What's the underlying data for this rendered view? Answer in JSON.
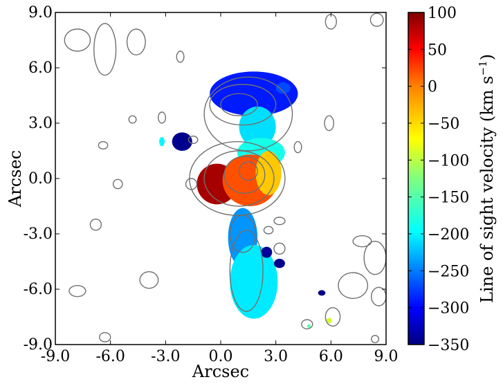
{
  "chart_data": {
    "type": "heatmap",
    "title": "",
    "xlabel": "Arcsec",
    "ylabel": "Arcsec",
    "xlim": [
      -9.0,
      9.0
    ],
    "ylim": [
      -9.0,
      9.0
    ],
    "x_ticks": [
      {
        "value": -9.0,
        "label": "-9.0"
      },
      {
        "value": -6.0,
        "label": "-6.0"
      },
      {
        "value": -3.0,
        "label": "-3.0"
      },
      {
        "value": 0.0,
        "label": "0.0"
      },
      {
        "value": 3.0,
        "label": "3.0"
      },
      {
        "value": 6.0,
        "label": "6.0"
      },
      {
        "value": 9.0,
        "label": "9.0"
      }
    ],
    "y_ticks": [
      {
        "value": 9.0,
        "label": "9.0"
      },
      {
        "value": 6.0,
        "label": "6.0"
      },
      {
        "value": 3.0,
        "label": "3.0"
      },
      {
        "value": 0.0,
        "label": "0.0"
      },
      {
        "value": -3.0,
        "label": "-3.0"
      },
      {
        "value": -6.0,
        "label": "-6.0"
      },
      {
        "value": -9.0,
        "label": "-9.0"
      }
    ],
    "colorbar": {
      "label": "Line of sight velocity (km s",
      "label_superscript": "−1",
      "label_close": ")",
      "range": [
        -350,
        100
      ],
      "colormap": "jet",
      "ticks": [
        {
          "value": 100,
          "label": "100"
        },
        {
          "value": 50,
          "label": "50"
        },
        {
          "value": 0,
          "label": "0"
        },
        {
          "value": -50,
          "label": "−50"
        },
        {
          "value": -100,
          "label": "−100"
        },
        {
          "value": -150,
          "label": "−150"
        },
        {
          "value": -200,
          "label": "−200"
        },
        {
          "value": -250,
          "label": "−250"
        },
        {
          "value": -300,
          "label": "−300"
        },
        {
          "value": -350,
          "label": "−350"
        }
      ]
    },
    "velocity_regions": [
      {
        "name": "northern-blue-lobe",
        "x": 1.8,
        "y": 4.6,
        "rx": 2.4,
        "ry": 1.2,
        "velocity": -290
      },
      {
        "name": "northern-stem",
        "x": 2.0,
        "y": 2.8,
        "rx": 1.0,
        "ry": 1.1,
        "velocity": -210
      },
      {
        "name": "bridge-cyan",
        "x": 2.2,
        "y": 1.4,
        "rx": 1.3,
        "ry": 0.8,
        "velocity": -185
      },
      {
        "name": "core-red",
        "x": -0.2,
        "y": -0.3,
        "rx": 1.1,
        "ry": 1.1,
        "velocity": 85
      },
      {
        "name": "core-orange",
        "x": 1.6,
        "y": -0.1,
        "rx": 1.5,
        "ry": 1.4,
        "velocity": 20
      },
      {
        "name": "core-yellow-rim",
        "x": 2.6,
        "y": 0.3,
        "rx": 0.7,
        "ry": 1.2,
        "velocity": -40
      },
      {
        "name": "southern-stem",
        "x": 1.2,
        "y": -3.2,
        "rx": 0.8,
        "ry": 1.6,
        "velocity": -240
      },
      {
        "name": "southern-tail",
        "x": 1.8,
        "y": -5.6,
        "rx": 1.3,
        "ry": 2.0,
        "velocity": -205
      },
      {
        "name": "west-blob",
        "x": -2.1,
        "y": 2.0,
        "rx": 0.55,
        "ry": 0.5,
        "velocity": -345
      },
      {
        "name": "small-north-blue",
        "x": 3.4,
        "y": 4.9,
        "rx": 0.4,
        "ry": 0.3,
        "velocity": -270
      },
      {
        "name": "small-south-blue-1",
        "x": 2.5,
        "y": -4.0,
        "rx": 0.3,
        "ry": 0.3,
        "velocity": -340
      },
      {
        "name": "small-south-blue-2",
        "x": 3.2,
        "y": -4.6,
        "rx": 0.3,
        "ry": 0.25,
        "velocity": -345
      },
      {
        "name": "small-west-cyan",
        "x": -3.2,
        "y": 2.0,
        "rx": 0.15,
        "ry": 0.25,
        "velocity": -200
      },
      {
        "name": "far-se-blue",
        "x": 5.5,
        "y": -6.2,
        "rx": 0.2,
        "ry": 0.15,
        "velocity": -345
      },
      {
        "name": "far-se-green",
        "x": 5.9,
        "y": -7.7,
        "rx": 0.15,
        "ry": 0.15,
        "velocity": -90
      },
      {
        "name": "far-se-yellow",
        "x": 4.8,
        "y": -8.0,
        "rx": 0.1,
        "ry": 0.1,
        "velocity": -150
      }
    ],
    "contours": [
      {
        "cx": 1.0,
        "cy": 4.0,
        "rx": 1.0,
        "ry": 0.6
      },
      {
        "cx": 1.2,
        "cy": 4.0,
        "rx": 1.8,
        "ry": 1.1
      },
      {
        "cx": 1.5,
        "cy": 3.5,
        "rx": 2.4,
        "ry": 2.0
      },
      {
        "cx": 1.5,
        "cy": 0.4,
        "rx": 0.5,
        "ry": 0.5
      },
      {
        "cx": 1.3,
        "cy": 0.2,
        "rx": 1.1,
        "ry": 1.0
      },
      {
        "cx": 1.0,
        "cy": 0.0,
        "rx": 1.9,
        "ry": 1.5
      },
      {
        "cx": 0.9,
        "cy": 0.0,
        "rx": 2.6,
        "ry": 2.0
      },
      {
        "cx": 1.2,
        "cy": -3.0,
        "rx": 0.7,
        "ry": 1.0
      },
      {
        "cx": 1.4,
        "cy": -5.0,
        "rx": 0.9,
        "ry": 2.2
      },
      {
        "cx": -6.3,
        "cy": 7.0,
        "rx": 0.6,
        "ry": 1.4
      },
      {
        "cx": -7.8,
        "cy": 7.5,
        "rx": 0.7,
        "ry": 0.6
      },
      {
        "cx": -4.6,
        "cy": 7.4,
        "rx": 0.5,
        "ry": 0.7
      },
      {
        "cx": -2.2,
        "cy": 6.6,
        "rx": 0.2,
        "ry": 0.3
      },
      {
        "cx": -3.2,
        "cy": 3.3,
        "rx": 0.2,
        "ry": 0.3
      },
      {
        "cx": -4.8,
        "cy": 3.2,
        "rx": 0.2,
        "ry": 0.2
      },
      {
        "cx": -6.4,
        "cy": 1.8,
        "rx": 0.25,
        "ry": 0.2
      },
      {
        "cx": -1.5,
        "cy": 2.1,
        "rx": 0.25,
        "ry": 0.2
      },
      {
        "cx": 8.5,
        "cy": 8.6,
        "rx": 0.35,
        "ry": 0.35
      },
      {
        "cx": 6.0,
        "cy": 8.5,
        "rx": 0.3,
        "ry": 0.4
      },
      {
        "cx": 5.9,
        "cy": 3.0,
        "rx": 0.25,
        "ry": 0.4
      },
      {
        "cx": 4.2,
        "cy": 1.7,
        "rx": 0.2,
        "ry": 0.3
      },
      {
        "cx": -1.6,
        "cy": -0.3,
        "rx": 0.3,
        "ry": 0.3
      },
      {
        "cx": -5.6,
        "cy": -0.3,
        "rx": 0.25,
        "ry": 0.25
      },
      {
        "cx": -6.8,
        "cy": -2.5,
        "rx": 0.3,
        "ry": 0.3
      },
      {
        "cx": 3.2,
        "cy": -2.3,
        "rx": 0.3,
        "ry": 0.2
      },
      {
        "cx": 2.6,
        "cy": -2.8,
        "rx": 0.25,
        "ry": 0.2
      },
      {
        "cx": 7.7,
        "cy": -3.4,
        "rx": 0.5,
        "ry": 0.3
      },
      {
        "cx": 8.4,
        "cy": -4.3,
        "rx": 0.6,
        "ry": 0.9
      },
      {
        "cx": 7.2,
        "cy": -5.8,
        "rx": 0.8,
        "ry": 0.7
      },
      {
        "cx": 8.6,
        "cy": -6.4,
        "rx": 0.4,
        "ry": 0.5
      },
      {
        "cx": -7.8,
        "cy": -6.1,
        "rx": 0.45,
        "ry": 0.3
      },
      {
        "cx": -3.9,
        "cy": -5.5,
        "rx": 0.5,
        "ry": 0.45
      },
      {
        "cx": 3.2,
        "cy": -3.8,
        "rx": 0.3,
        "ry": 0.3
      },
      {
        "cx": 6.1,
        "cy": -7.5,
        "rx": 0.4,
        "ry": 0.5
      },
      {
        "cx": 4.7,
        "cy": -7.9,
        "rx": 0.3,
        "ry": 0.25
      },
      {
        "cx": -6.3,
        "cy": -8.6,
        "rx": 0.3,
        "ry": 0.25
      },
      {
        "cx": 8.4,
        "cy": -8.7,
        "rx": 0.2,
        "ry": 0.2
      }
    ],
    "contour_color": "#707070"
  }
}
